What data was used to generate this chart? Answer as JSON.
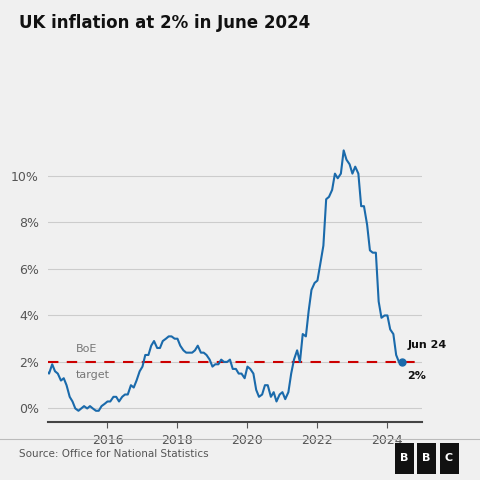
{
  "title": "UK inflation at 2% in June 2024",
  "source": "Source: Office for National Statistics",
  "bbc_text": "BBC",
  "line_color": "#1a6aab",
  "target_line_color": "#cc0000",
  "target_value": 2.0,
  "target_label_line1": "BoE",
  "target_label_line2": "target",
  "end_label_line1": "Jun 24",
  "end_label_line2": "2%",
  "background_color": "#f0f0f0",
  "grid_color": "#cccccc",
  "yticks": [
    0,
    2,
    4,
    6,
    8,
    10
  ],
  "ytick_labels": [
    "0%",
    "2%",
    "4%",
    "6%",
    "8%",
    "10%"
  ],
  "xlim_start": 2014.3,
  "xlim_end": 2025.0,
  "ylim": [
    -0.6,
    12.2
  ],
  "xtick_years": [
    2016,
    2018,
    2020,
    2022,
    2024
  ],
  "cpi_data": [
    [
      2014.0,
      1.5
    ],
    [
      2014.08,
      1.9
    ],
    [
      2014.17,
      1.7
    ],
    [
      2014.25,
      1.6
    ],
    [
      2014.33,
      1.5
    ],
    [
      2014.42,
      1.9
    ],
    [
      2014.5,
      1.6
    ],
    [
      2014.58,
      1.5
    ],
    [
      2014.67,
      1.2
    ],
    [
      2014.75,
      1.3
    ],
    [
      2014.83,
      1.0
    ],
    [
      2014.92,
      0.5
    ],
    [
      2015.0,
      0.3
    ],
    [
      2015.08,
      0.0
    ],
    [
      2015.17,
      -0.1
    ],
    [
      2015.25,
      0.0
    ],
    [
      2015.33,
      0.1
    ],
    [
      2015.42,
      0.0
    ],
    [
      2015.5,
      0.1
    ],
    [
      2015.58,
      0.0
    ],
    [
      2015.67,
      -0.1
    ],
    [
      2015.75,
      -0.1
    ],
    [
      2015.83,
      0.1
    ],
    [
      2015.92,
      0.2
    ],
    [
      2016.0,
      0.3
    ],
    [
      2016.08,
      0.3
    ],
    [
      2016.17,
      0.5
    ],
    [
      2016.25,
      0.5
    ],
    [
      2016.33,
      0.3
    ],
    [
      2016.42,
      0.5
    ],
    [
      2016.5,
      0.6
    ],
    [
      2016.58,
      0.6
    ],
    [
      2016.67,
      1.0
    ],
    [
      2016.75,
      0.9
    ],
    [
      2016.83,
      1.2
    ],
    [
      2016.92,
      1.6
    ],
    [
      2017.0,
      1.8
    ],
    [
      2017.08,
      2.3
    ],
    [
      2017.17,
      2.3
    ],
    [
      2017.25,
      2.7
    ],
    [
      2017.33,
      2.9
    ],
    [
      2017.42,
      2.6
    ],
    [
      2017.5,
      2.6
    ],
    [
      2017.58,
      2.9
    ],
    [
      2017.67,
      3.0
    ],
    [
      2017.75,
      3.1
    ],
    [
      2017.83,
      3.1
    ],
    [
      2017.92,
      3.0
    ],
    [
      2018.0,
      3.0
    ],
    [
      2018.08,
      2.7
    ],
    [
      2018.17,
      2.5
    ],
    [
      2018.25,
      2.4
    ],
    [
      2018.33,
      2.4
    ],
    [
      2018.42,
      2.4
    ],
    [
      2018.5,
      2.5
    ],
    [
      2018.58,
      2.7
    ],
    [
      2018.67,
      2.4
    ],
    [
      2018.75,
      2.4
    ],
    [
      2018.83,
      2.3
    ],
    [
      2018.92,
      2.1
    ],
    [
      2019.0,
      1.8
    ],
    [
      2019.08,
      1.9
    ],
    [
      2019.17,
      1.9
    ],
    [
      2019.25,
      2.1
    ],
    [
      2019.33,
      2.0
    ],
    [
      2019.42,
      2.0
    ],
    [
      2019.5,
      2.1
    ],
    [
      2019.58,
      1.7
    ],
    [
      2019.67,
      1.7
    ],
    [
      2019.75,
      1.5
    ],
    [
      2019.83,
      1.5
    ],
    [
      2019.92,
      1.3
    ],
    [
      2020.0,
      1.8
    ],
    [
      2020.08,
      1.7
    ],
    [
      2020.17,
      1.5
    ],
    [
      2020.25,
      0.8
    ],
    [
      2020.33,
      0.5
    ],
    [
      2020.42,
      0.6
    ],
    [
      2020.5,
      1.0
    ],
    [
      2020.58,
      1.0
    ],
    [
      2020.67,
      0.5
    ],
    [
      2020.75,
      0.7
    ],
    [
      2020.83,
      0.3
    ],
    [
      2020.92,
      0.6
    ],
    [
      2021.0,
      0.7
    ],
    [
      2021.08,
      0.4
    ],
    [
      2021.17,
      0.7
    ],
    [
      2021.25,
      1.5
    ],
    [
      2021.33,
      2.1
    ],
    [
      2021.42,
      2.5
    ],
    [
      2021.5,
      2.0
    ],
    [
      2021.58,
      3.2
    ],
    [
      2021.67,
      3.1
    ],
    [
      2021.75,
      4.2
    ],
    [
      2021.83,
      5.1
    ],
    [
      2021.92,
      5.4
    ],
    [
      2022.0,
      5.5
    ],
    [
      2022.08,
      6.2
    ],
    [
      2022.17,
      7.0
    ],
    [
      2022.25,
      9.0
    ],
    [
      2022.33,
      9.1
    ],
    [
      2022.42,
      9.4
    ],
    [
      2022.5,
      10.1
    ],
    [
      2022.58,
      9.9
    ],
    [
      2022.67,
      10.1
    ],
    [
      2022.75,
      11.1
    ],
    [
      2022.83,
      10.7
    ],
    [
      2022.92,
      10.5
    ],
    [
      2023.0,
      10.1
    ],
    [
      2023.08,
      10.4
    ],
    [
      2023.17,
      10.1
    ],
    [
      2023.25,
      8.7
    ],
    [
      2023.33,
      8.7
    ],
    [
      2023.42,
      7.9
    ],
    [
      2023.5,
      6.8
    ],
    [
      2023.58,
      6.7
    ],
    [
      2023.67,
      6.7
    ],
    [
      2023.75,
      4.6
    ],
    [
      2023.83,
      3.9
    ],
    [
      2023.92,
      4.0
    ],
    [
      2024.0,
      4.0
    ],
    [
      2024.08,
      3.4
    ],
    [
      2024.17,
      3.2
    ],
    [
      2024.25,
      2.3
    ],
    [
      2024.33,
      2.0
    ],
    [
      2024.42,
      2.0
    ]
  ]
}
